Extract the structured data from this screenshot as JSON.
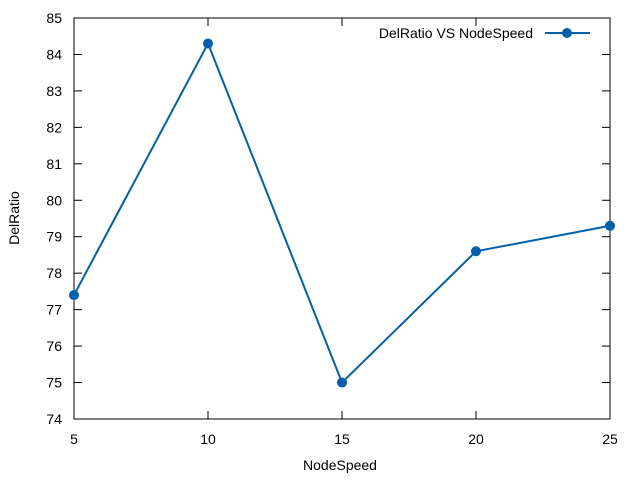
{
  "chart_data": {
    "type": "line",
    "xlabel": "NodeSpeed",
    "ylabel": "DelRatio",
    "xlim": [
      5,
      25
    ],
    "ylim": [
      74,
      85
    ],
    "xticks": [
      5,
      10,
      15,
      20,
      25
    ],
    "yticks": [
      74,
      75,
      76,
      77,
      78,
      79,
      80,
      81,
      82,
      83,
      84,
      85
    ],
    "grid": false,
    "legend_position": "top-right",
    "series": [
      {
        "name": "DelRatio VS NodeSpeed",
        "color": "#0060ad",
        "marker": "circle",
        "x": [
          5,
          10,
          15,
          20,
          25
        ],
        "y": [
          77.4,
          84.3,
          75.0,
          78.6,
          79.3
        ]
      }
    ]
  }
}
